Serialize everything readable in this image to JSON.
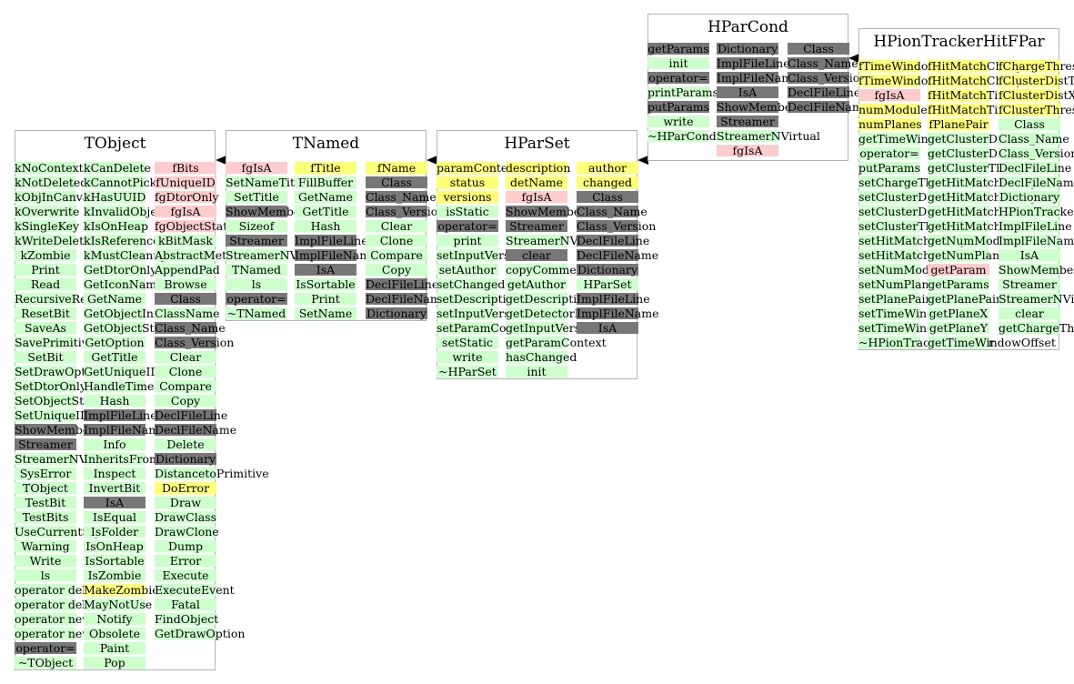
{
  "classes": [
    {
      "id": "tobject",
      "title": "TObject",
      "columns": [
        [
          [
            "kNoContextMenu",
            "m"
          ],
          [
            "kNotDeleted",
            "m"
          ],
          [
            "kObjInCanvas",
            "m"
          ],
          [
            "kOverwrite",
            "m"
          ],
          [
            "kSingleKey",
            "m"
          ],
          [
            "kWriteDelete",
            "m"
          ],
          [
            "kZombie",
            "m"
          ],
          [
            "Print",
            "m"
          ],
          [
            "Read",
            "m"
          ],
          [
            "RecursiveRemove",
            "m"
          ],
          [
            "ResetBit",
            "m"
          ],
          [
            "SaveAs",
            "m"
          ],
          [
            "SavePrimitive",
            "m"
          ],
          [
            "SetBit",
            "m"
          ],
          [
            "SetDrawOption",
            "m"
          ],
          [
            "SetDtorOnly",
            "m"
          ],
          [
            "SetObjectStat",
            "m"
          ],
          [
            "SetUniqueID",
            "m"
          ],
          [
            "ShowMembers",
            "i"
          ],
          [
            "Streamer",
            "i"
          ],
          [
            "StreamerNVirtual",
            "m"
          ],
          [
            "SysError",
            "m"
          ],
          [
            "TObject",
            "m"
          ],
          [
            "TestBit",
            "m"
          ],
          [
            "TestBits",
            "m"
          ],
          [
            "UseCurrentStyle",
            "m"
          ],
          [
            "Warning",
            "m"
          ],
          [
            "Write",
            "m"
          ],
          [
            "ls",
            "m"
          ],
          [
            "operator delete",
            "m"
          ],
          [
            "operator delete[]",
            "m"
          ],
          [
            "operator new",
            "m"
          ],
          [
            "operator new[]",
            "m"
          ],
          [
            "operator=",
            "i"
          ],
          [
            "~TObject",
            "m"
          ]
        ],
        [
          [
            "kCanDelete",
            "m"
          ],
          [
            "kCannotPick",
            "m"
          ],
          [
            "kHasUUID",
            "m"
          ],
          [
            "kInvalidObject",
            "m"
          ],
          [
            "kIsOnHeap",
            "m"
          ],
          [
            "kIsReferenced",
            "m"
          ],
          [
            "kMustCleanup",
            "m"
          ],
          [
            "GetDtorOnly",
            "m"
          ],
          [
            "GetIconName",
            "m"
          ],
          [
            "GetName",
            "m"
          ],
          [
            "GetObjectInfo",
            "m"
          ],
          [
            "GetObjectStat",
            "m"
          ],
          [
            "GetOption",
            "m"
          ],
          [
            "GetTitle",
            "m"
          ],
          [
            "GetUniqueID",
            "m"
          ],
          [
            "HandleTimer",
            "m"
          ],
          [
            "Hash",
            "m"
          ],
          [
            "ImplFileLine",
            "i"
          ],
          [
            "ImplFileName",
            "i"
          ],
          [
            "Info",
            "m"
          ],
          [
            "InheritsFrom",
            "m"
          ],
          [
            "Inspect",
            "m"
          ],
          [
            "InvertBit",
            "m"
          ],
          [
            "IsA",
            "i"
          ],
          [
            "IsEqual",
            "m"
          ],
          [
            "IsFolder",
            "m"
          ],
          [
            "IsOnHeap",
            "m"
          ],
          [
            "IsSortable",
            "m"
          ],
          [
            "IsZombie",
            "m"
          ],
          [
            "MakeZombie",
            "v"
          ],
          [
            "MayNotUse",
            "m"
          ],
          [
            "Notify",
            "m"
          ],
          [
            "Obsolete",
            "m"
          ],
          [
            "Paint",
            "m"
          ],
          [
            "Pop",
            "m"
          ]
        ],
        [
          [
            "fBits",
            "d"
          ],
          [
            "fUniqueID",
            "d"
          ],
          [
            "fgDtorOnly",
            "d"
          ],
          [
            "fgIsA",
            "d"
          ],
          [
            "fgObjectStat",
            "d"
          ],
          [
            "kBitMask",
            "m"
          ],
          [
            "AbstractMethod",
            "m"
          ],
          [
            "AppendPad",
            "m"
          ],
          [
            "Browse",
            "m"
          ],
          [
            "Class",
            "i"
          ],
          [
            "ClassName",
            "m"
          ],
          [
            "Class_Name",
            "i"
          ],
          [
            "Class_Version",
            "i"
          ],
          [
            "Clear",
            "m"
          ],
          [
            "Clone",
            "m"
          ],
          [
            "Compare",
            "m"
          ],
          [
            "Copy",
            "m"
          ],
          [
            "DeclFileLine",
            "i"
          ],
          [
            "DeclFileName",
            "i"
          ],
          [
            "Delete",
            "m"
          ],
          [
            "Dictionary",
            "i"
          ],
          [
            "DistancetoPrimitive",
            "m"
          ],
          [
            "DoError",
            "v"
          ],
          [
            "Draw",
            "m"
          ],
          [
            "DrawClass",
            "m"
          ],
          [
            "DrawClone",
            "m"
          ],
          [
            "Dump",
            "m"
          ],
          [
            "Error",
            "m"
          ],
          [
            "Execute",
            "m"
          ],
          [
            "ExecuteEvent",
            "m"
          ],
          [
            "Fatal",
            "m"
          ],
          [
            "FindObject",
            "m"
          ],
          [
            "GetDrawOption",
            "m"
          ]
        ]
      ]
    },
    {
      "id": "tnamed",
      "title": "TNamed",
      "columns": [
        [
          [
            "fgIsA",
            "d"
          ],
          [
            "SetNameTitle",
            "m"
          ],
          [
            "SetTitle",
            "m"
          ],
          [
            "ShowMembers",
            "i"
          ],
          [
            "Sizeof",
            "m"
          ],
          [
            "Streamer",
            "i"
          ],
          [
            "StreamerNVirtual",
            "m"
          ],
          [
            "TNamed",
            "m"
          ],
          [
            "ls",
            "m"
          ],
          [
            "operator=",
            "i"
          ],
          [
            "~TNamed",
            "m"
          ]
        ],
        [
          [
            "fTitle",
            "v"
          ],
          [
            "FillBuffer",
            "m"
          ],
          [
            "GetName",
            "m"
          ],
          [
            "GetTitle",
            "m"
          ],
          [
            "Hash",
            "m"
          ],
          [
            "ImplFileLine",
            "i"
          ],
          [
            "ImplFileName",
            "i"
          ],
          [
            "IsA",
            "i"
          ],
          [
            "IsSortable",
            "m"
          ],
          [
            "Print",
            "m"
          ],
          [
            "SetName",
            "m"
          ]
        ],
        [
          [
            "fName",
            "v"
          ],
          [
            "Class",
            "i"
          ],
          [
            "Class_Name",
            "i"
          ],
          [
            "Class_Version",
            "i"
          ],
          [
            "Clear",
            "m"
          ],
          [
            "Clone",
            "m"
          ],
          [
            "Compare",
            "m"
          ],
          [
            "Copy",
            "m"
          ],
          [
            "DeclFileLine",
            "i"
          ],
          [
            "DeclFileName",
            "i"
          ],
          [
            "Dictionary",
            "i"
          ]
        ]
      ]
    },
    {
      "id": "hparset",
      "title": "HParSet",
      "columns": [
        [
          [
            "paramContext",
            "v"
          ],
          [
            "status",
            "v"
          ],
          [
            "versions",
            "v"
          ],
          [
            "isStatic",
            "m"
          ],
          [
            "operator=",
            "i"
          ],
          [
            "print",
            "m"
          ],
          [
            "setInputVersions",
            "m"
          ],
          [
            "setAuthor",
            "m"
          ],
          [
            "setChanged",
            "m"
          ],
          [
            "setDescription",
            "m"
          ],
          [
            "setInputVersion",
            "m"
          ],
          [
            "setParamContext",
            "m"
          ],
          [
            "setStatic",
            "m"
          ],
          [
            "write",
            "m"
          ],
          [
            "~HParSet",
            "m"
          ]
        ],
        [
          [
            "description",
            "v"
          ],
          [
            "detName",
            "v"
          ],
          [
            "fgIsA",
            "d"
          ],
          [
            "ShowMembers",
            "i"
          ],
          [
            "Streamer",
            "i"
          ],
          [
            "StreamerNVirtual",
            "m"
          ],
          [
            "clear",
            "i"
          ],
          [
            "copyComment",
            "m"
          ],
          [
            "getAuthor",
            "m"
          ],
          [
            "getDescription",
            "m"
          ],
          [
            "getDetectorName",
            "m"
          ],
          [
            "getInputVersion",
            "m"
          ],
          [
            "getParamContext",
            "m"
          ],
          [
            "hasChanged",
            "m"
          ],
          [
            "init",
            "m"
          ]
        ],
        [
          [
            "author",
            "v"
          ],
          [
            "changed",
            "v"
          ],
          [
            "Class",
            "i"
          ],
          [
            "Class_Name",
            "i"
          ],
          [
            "Class_Version",
            "i"
          ],
          [
            "DeclFileLine",
            "i"
          ],
          [
            "DeclFileName",
            "i"
          ],
          [
            "Dictionary",
            "i"
          ],
          [
            "HParSet",
            "m"
          ],
          [
            "ImplFileLine",
            "i"
          ],
          [
            "ImplFileName",
            "i"
          ],
          [
            "IsA",
            "i"
          ]
        ]
      ]
    },
    {
      "id": "hparcond",
      "title": "HParCond",
      "columns": [
        [
          [
            "getParams",
            "i"
          ],
          [
            "init",
            "m"
          ],
          [
            "operator=",
            "i"
          ],
          [
            "printParams",
            "m"
          ],
          [
            "putParams",
            "i"
          ],
          [
            "write",
            "m"
          ],
          [
            "~HParCond",
            "m"
          ]
        ],
        [
          [
            "Dictionary",
            "i"
          ],
          [
            "ImplFileLine",
            "i"
          ],
          [
            "ImplFileName",
            "i"
          ],
          [
            "IsA",
            "i"
          ],
          [
            "ShowMembers",
            "i"
          ],
          [
            "Streamer",
            "i"
          ],
          [
            "StreamerNVirtual",
            "m"
          ],
          [
            "fgIsA",
            "d"
          ]
        ],
        [
          [
            "Class",
            "i"
          ],
          [
            "Class_Name",
            "i"
          ],
          [
            "Class_Version",
            "i"
          ],
          [
            "DeclFileLine",
            "i"
          ],
          [
            "DeclFileName",
            "i"
          ]
        ]
      ]
    },
    {
      "id": "hpiontrackerhitfpar",
      "title": "HPionTrackerHitFPar",
      "columns": [
        [
          [
            "fTimeWindowOffset",
            "v"
          ],
          [
            "fTimeWindowWidth",
            "v"
          ],
          [
            "fgIsA",
            "d"
          ],
          [
            "numModules",
            "v"
          ],
          [
            "numPlanes",
            "v"
          ],
          [
            "getTimeWindowWidth",
            "m"
          ],
          [
            "operator=",
            "m"
          ],
          [
            "putParams",
            "m"
          ],
          [
            "setChargeThresh",
            "m"
          ],
          [
            "setClusterDistT",
            "m"
          ],
          [
            "setClusterDistX",
            "m"
          ],
          [
            "setClusterThresh",
            "m"
          ],
          [
            "setHitMatchCharge",
            "m"
          ],
          [
            "setHitMatchTime",
            "m"
          ],
          [
            "setNumModules",
            "m"
          ],
          [
            "setNumPlanes",
            "m"
          ],
          [
            "setPlanePair",
            "m"
          ],
          [
            "setTimeWindowOffset",
            "m"
          ],
          [
            "setTimeWindowWidth",
            "m"
          ],
          [
            "~HPionTrackerHitFPar",
            "m"
          ]
        ],
        [
          [
            "fHitMatchCharge",
            "v"
          ],
          [
            "fHitMatchCharge",
            "v"
          ],
          [
            "fHitMatchTime",
            "v"
          ],
          [
            "fHitMatchTime",
            "v"
          ],
          [
            "fPlanePair",
            "v"
          ],
          [
            "getClusterDistT",
            "m"
          ],
          [
            "getClusterDistX",
            "m"
          ],
          [
            "getClusterThresh",
            "m"
          ],
          [
            "getHitMatchCharge",
            "m"
          ],
          [
            "getHitMatchCharge",
            "m"
          ],
          [
            "getHitMatchTime",
            "m"
          ],
          [
            "getHitMatchTime",
            "m"
          ],
          [
            "getNumModules",
            "m"
          ],
          [
            "getNumPlanes",
            "m"
          ],
          [
            "getParam",
            "d"
          ],
          [
            "getParams",
            "m"
          ],
          [
            "getPlanePair",
            "m"
          ],
          [
            "getPlaneX",
            "m"
          ],
          [
            "getPlaneY",
            "m"
          ],
          [
            "getTimeWindowOffset",
            "m"
          ]
        ],
        [
          [
            "fChargeThresh",
            "v"
          ],
          [
            "fClusterDistT",
            "v"
          ],
          [
            "fClusterDistX",
            "v"
          ],
          [
            "fClusterThresh",
            "v"
          ],
          [
            "Class",
            "m"
          ],
          [
            "Class_Name",
            "m"
          ],
          [
            "Class_Version",
            "m"
          ],
          [
            "DeclFileLine",
            "m"
          ],
          [
            "DeclFileName",
            "m"
          ],
          [
            "Dictionary",
            "m"
          ],
          [
            "HPionTrackerHitFPar",
            "m"
          ],
          [
            "ImplFileLine",
            "m"
          ],
          [
            "ImplFileName",
            "m"
          ],
          [
            "IsA",
            "m"
          ],
          [
            "ShowMembers",
            "m"
          ],
          [
            "Streamer",
            "m"
          ],
          [
            "StreamerNVirtual",
            "m"
          ],
          [
            "clear",
            "m"
          ],
          [
            "getChargeThresh",
            "m"
          ]
        ]
      ]
    }
  ],
  "colors": {
    "method": "#ccffcc",
    "data_member": "#ffcccc",
    "virtual": "#ffff77",
    "inherited": "#777777",
    "box_border": "#b4b4b4",
    "arrow": "#000000"
  },
  "inheritance_arrows": [
    {
      "from": "tnamed",
      "to": "tobject"
    },
    {
      "from": "hparset",
      "to": "tnamed"
    },
    {
      "from": "hparcond",
      "to": "hparset"
    },
    {
      "from": "hpiontrackerhitfpar",
      "to": "hparcond"
    }
  ]
}
